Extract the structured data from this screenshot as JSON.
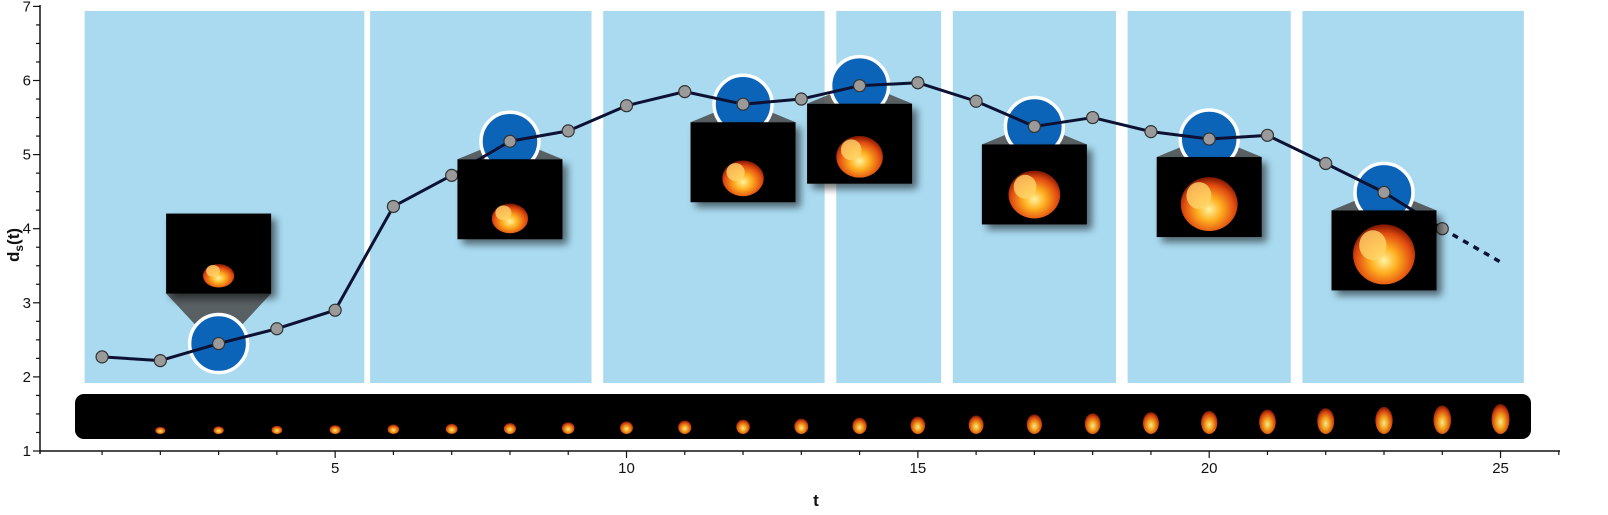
{
  "chart_data": {
    "type": "line",
    "title": "",
    "xlabel": "t",
    "ylabel_main": "d",
    "ylabel_sub": "s",
    "ylabel_tail": "(t)",
    "xlim": [
      0,
      26
    ],
    "ylim": [
      1,
      7
    ],
    "xticks": [
      5,
      10,
      15,
      20,
      25
    ],
    "yticks": [
      1,
      2,
      3,
      4,
      5,
      6,
      7
    ],
    "grid": false,
    "legend": "none",
    "colors": {
      "panel": "#a9daf0",
      "line": "#0d1133",
      "marker": "#9a9a9a",
      "highlight": "#0b64b8",
      "flame_strip": "#000000"
    },
    "series": [
      {
        "x": [
          1,
          2,
          3,
          4,
          5,
          6,
          7,
          8,
          9,
          10,
          11,
          12,
          13,
          14,
          15,
          16,
          17,
          18,
          19,
          20,
          21,
          22,
          23,
          24
        ],
        "y": [
          2.27,
          2.22,
          2.45,
          2.65,
          2.9,
          4.3,
          4.72,
          5.18,
          5.32,
          5.66,
          5.85,
          5.68,
          5.75,
          5.93,
          5.97,
          5.72,
          5.38,
          5.5,
          5.31,
          5.21,
          5.26,
          4.88,
          4.49,
          4.0
        ]
      }
    ],
    "extrapolation": {
      "x": [
        24,
        25
      ],
      "y": [
        4.0,
        3.55
      ],
      "style": "dotted"
    },
    "segments": [
      {
        "x_start": 0.7,
        "x_end": 5.5
      },
      {
        "x_start": 5.6,
        "x_end": 9.4
      },
      {
        "x_start": 9.6,
        "x_end": 13.4
      },
      {
        "x_start": 13.6,
        "x_end": 15.4
      },
      {
        "x_start": 15.6,
        "x_end": 18.4
      },
      {
        "x_start": 18.6,
        "x_end": 21.4
      },
      {
        "x_start": 21.6,
        "x_end": 25.4
      }
    ],
    "highlighted_x": [
      3,
      8,
      12,
      14,
      17,
      20,
      23
    ],
    "flame_strip_x": [
      2,
      3,
      4,
      5,
      6,
      7,
      8,
      9,
      10,
      11,
      12,
      13,
      14,
      15,
      16,
      17,
      18,
      19,
      20,
      21,
      22,
      23,
      24,
      25
    ]
  }
}
